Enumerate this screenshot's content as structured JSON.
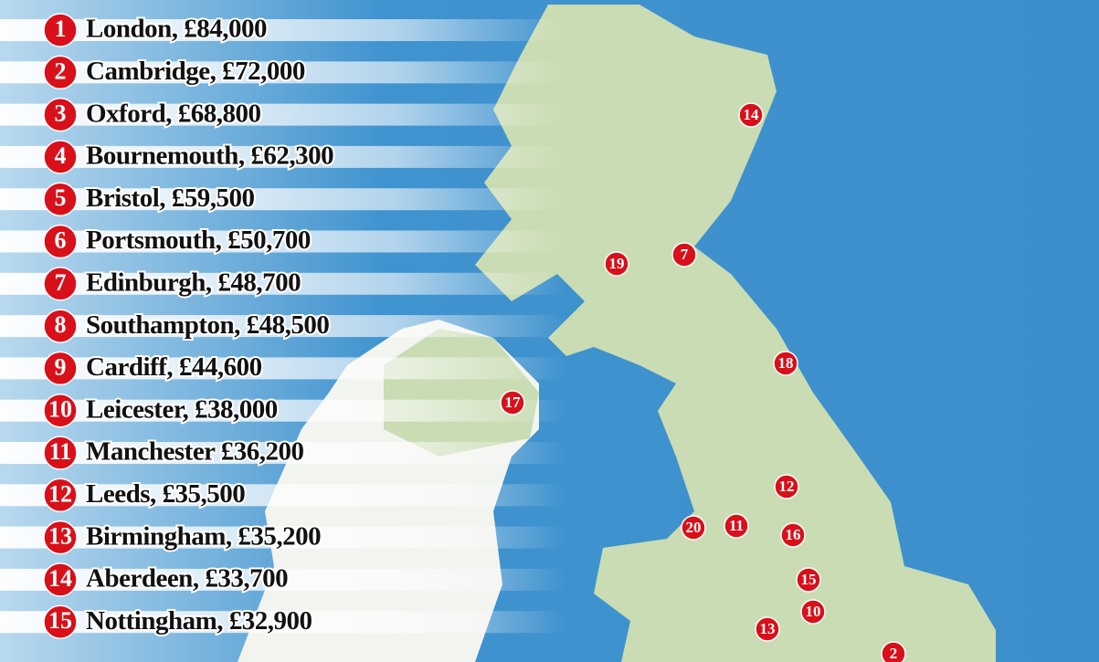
{
  "list": [
    {
      "rank": "1",
      "text": "London, £84,000"
    },
    {
      "rank": "2",
      "text": "Cambridge, £72,000"
    },
    {
      "rank": "3",
      "text": "Oxford, £68,800"
    },
    {
      "rank": "4",
      "text": "Bournemouth, £62,300"
    },
    {
      "rank": "5",
      "text": "Bristol, £59,500"
    },
    {
      "rank": "6",
      "text": "Portsmouth, £50,700"
    },
    {
      "rank": "7",
      "text": "Edinburgh, £48,700"
    },
    {
      "rank": "8",
      "text": "Southampton, £48,500"
    },
    {
      "rank": "9",
      "text": "Cardiff, £44,600"
    },
    {
      "rank": "10",
      "text": "Leicester, £38,000"
    },
    {
      "rank": "11",
      "text": "Manchester £36,200"
    },
    {
      "rank": "12",
      "text": "Leeds, £35,500"
    },
    {
      "rank": "13",
      "text": "Birmingham, £35,200"
    },
    {
      "rank": "14",
      "text": "Aberdeen, £33,700"
    },
    {
      "rank": "15",
      "text": "Nottingham, £32,900"
    }
  ],
  "markers": [
    "14",
    "7",
    "19",
    "18",
    "17",
    "12",
    "20",
    "11",
    "16",
    "15",
    "10",
    "13",
    "2"
  ]
}
